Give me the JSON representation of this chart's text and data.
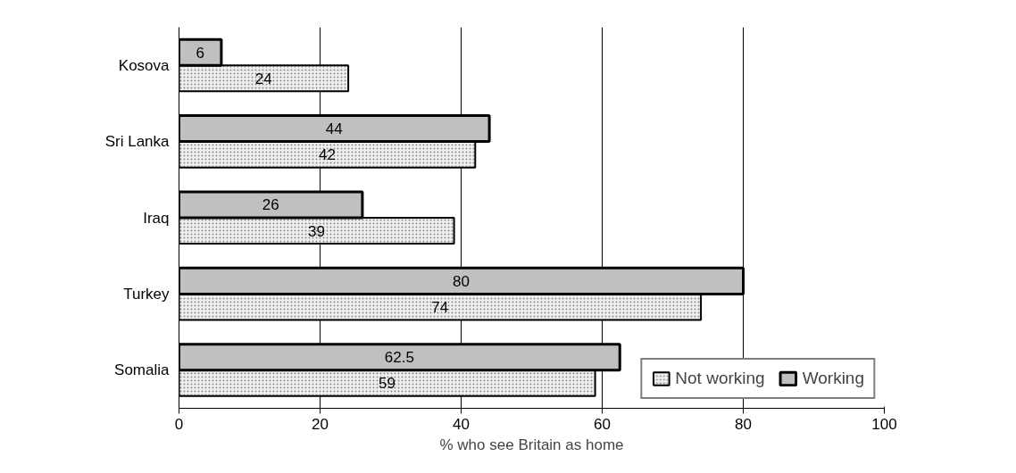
{
  "chart_data": {
    "type": "bar",
    "orientation": "horizontal",
    "categories": [
      "Kosova",
      "Sri Lanka",
      "Iraq",
      "Turkey",
      "Somalia"
    ],
    "series": [
      {
        "name": "Not working",
        "color": "#f0f0f0",
        "values": [
          24,
          42,
          39,
          74,
          59
        ]
      },
      {
        "name": "Working",
        "color": "#c0c0c0",
        "values": [
          6,
          44,
          26,
          80,
          62.5
        ]
      }
    ],
    "xlabel": "% who see Britain as home",
    "xlim": [
      0,
      100
    ],
    "xticks": [
      0,
      20,
      40,
      60,
      80,
      100
    ],
    "grid": "x",
    "data_labels": true,
    "legend": "bottom right"
  }
}
